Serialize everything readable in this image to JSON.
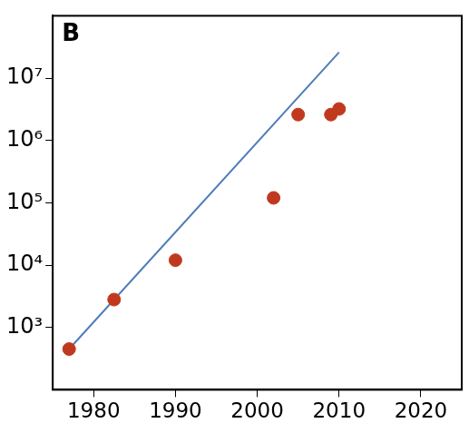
{
  "chart_data": {
    "type": "scatter",
    "title": "B",
    "log": "y",
    "grid": false,
    "xlim": [
      1975,
      2025
    ],
    "xticks": [
      1980,
      1990,
      2000,
      2010,
      2020
    ],
    "ylim": [
      100,
      100000000
    ],
    "yticks": [
      {
        "value": 1000,
        "label": "10³"
      },
      {
        "value": 10000,
        "label": "10⁴"
      },
      {
        "value": 100000,
        "label": "10⁵"
      },
      {
        "value": 1000000,
        "label": "10⁶"
      },
      {
        "value": 10000000,
        "label": "10⁷"
      }
    ],
    "series": [
      {
        "type": "line",
        "color": "#4f7cb8",
        "x": [
          1977,
          2010
        ],
        "values": [
          450,
          26000000
        ]
      },
      {
        "type": "scatter",
        "color": "#c0391e",
        "marker": "circle",
        "x": [
          1977,
          1982.5,
          1990,
          2002,
          2005,
          2009,
          2010
        ],
        "values": [
          450,
          2800,
          12000,
          120000,
          2600000,
          2600000,
          3200000
        ]
      }
    ]
  }
}
